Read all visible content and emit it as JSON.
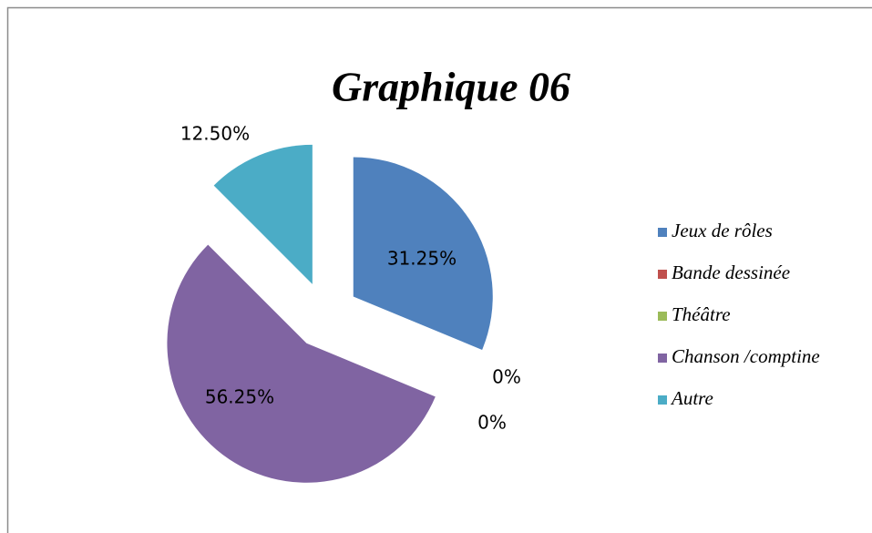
{
  "chart_data": {
    "type": "pie",
    "title": "Graphique 06",
    "categories": [
      "Jeux de rôles",
      "Bande dessinée",
      "Théâtre",
      "Chanson /comptine",
      "Autre"
    ],
    "values": [
      31.25,
      0,
      0,
      56.25,
      12.5
    ],
    "value_labels": [
      "31.25%",
      "0%",
      "0%",
      "56.25%",
      "12.50%"
    ],
    "colors": [
      "#4f81bd",
      "#c0504d",
      "#9bbb59",
      "#8064a2",
      "#4bacc6"
    ],
    "legend": "right"
  }
}
